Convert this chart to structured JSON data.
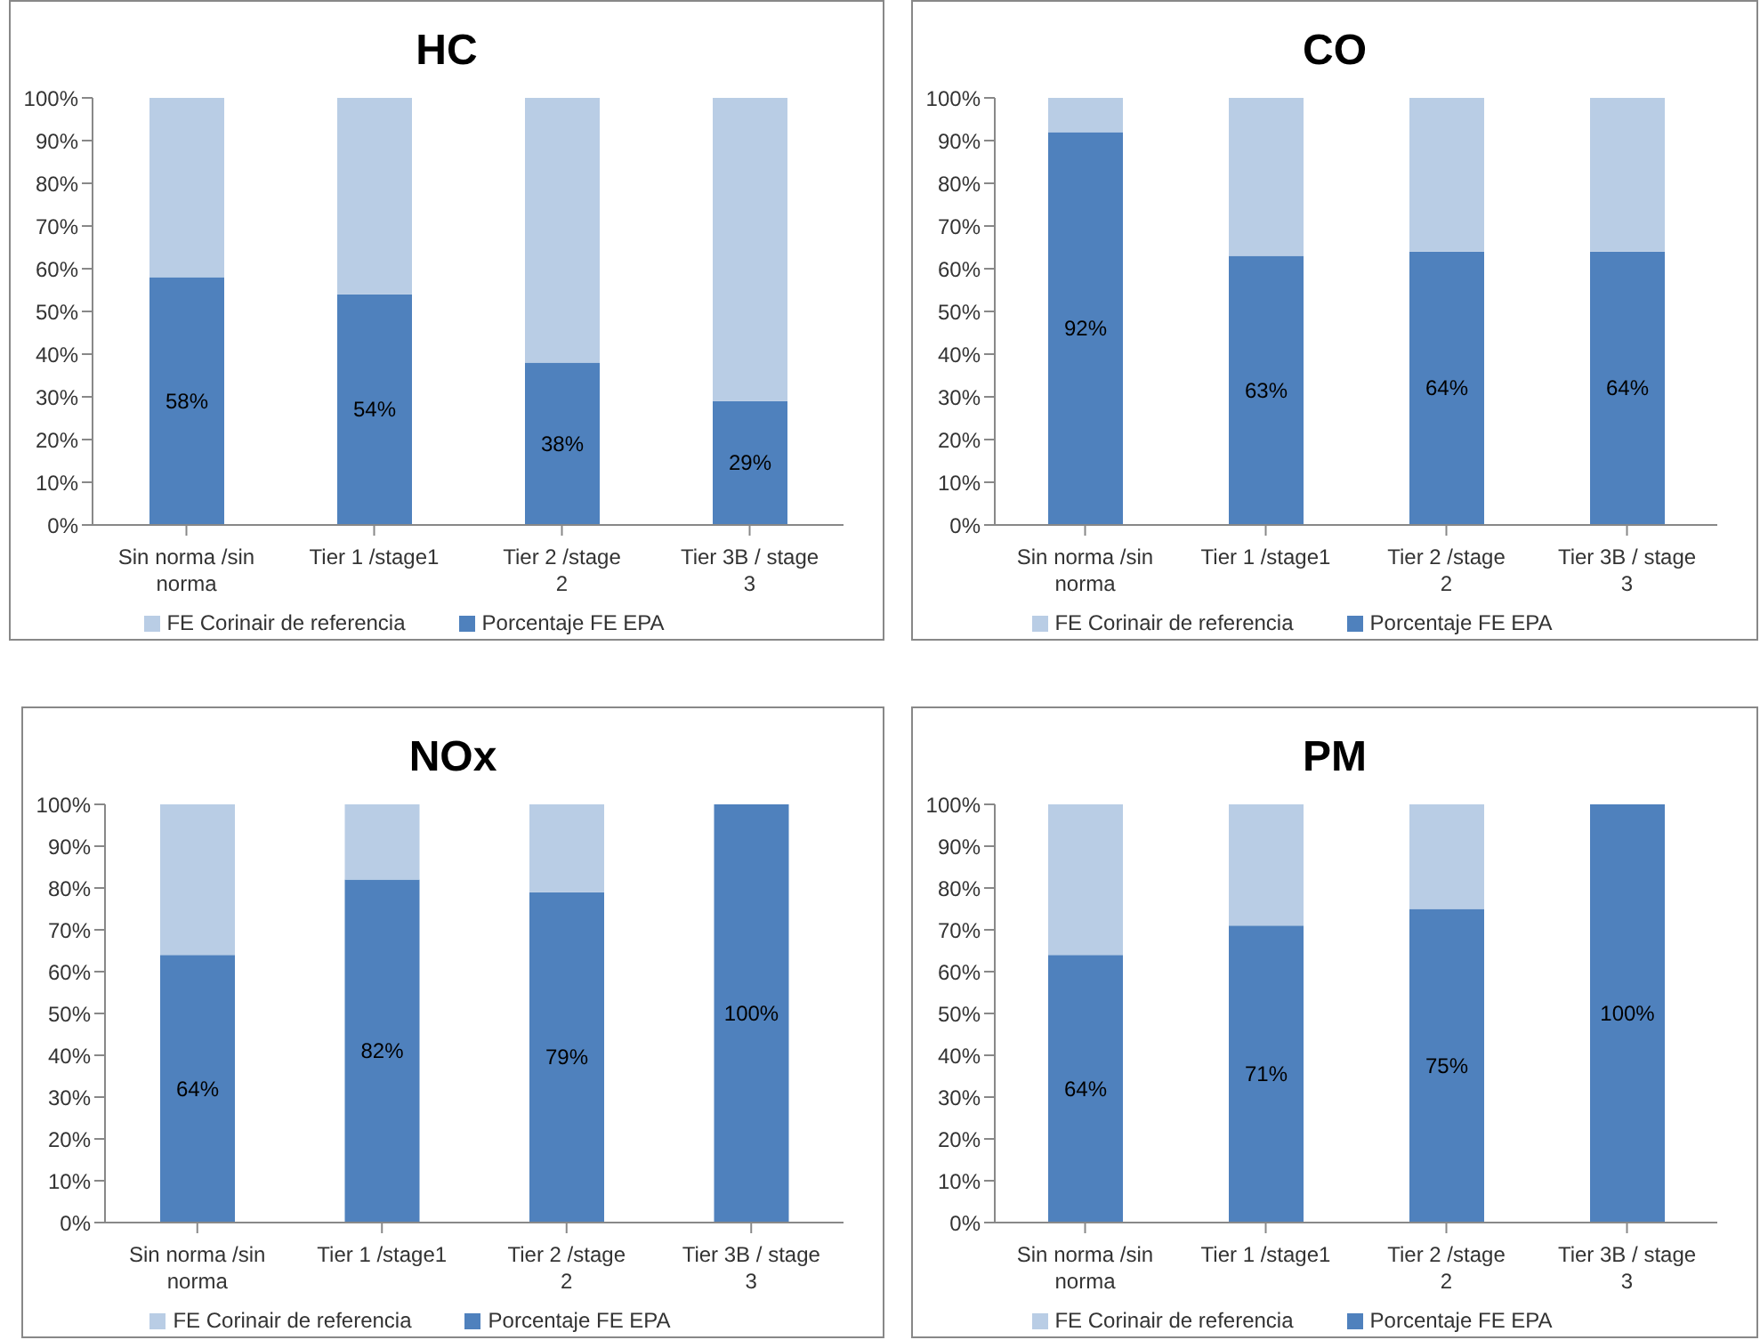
{
  "chart_data": [
    {
      "type": "bar",
      "stacked": true,
      "title": "HC",
      "categories": [
        "Sin norma /sin norma",
        "Tier 1  /stage1",
        "Tier 2  /stage 2",
        "Tier 3B / stage 3"
      ],
      "legend": "bottom",
      "ylim": [
        0,
        100
      ],
      "yticks": [
        {
          "value": 0,
          "label": "0%"
        },
        {
          "value": 10,
          "label": "10%"
        },
        {
          "value": 20,
          "label": "20%"
        },
        {
          "value": 30,
          "label": "30%"
        },
        {
          "value": 40,
          "label": "40%"
        },
        {
          "value": 50,
          "label": "50%"
        },
        {
          "value": 60,
          "label": "60%"
        },
        {
          "value": 70,
          "label": "70%"
        },
        {
          "value": 80,
          "label": "80%"
        },
        {
          "value": 90,
          "label": "90%"
        },
        {
          "value": 100,
          "label": "100%"
        }
      ],
      "series": [
        {
          "name": "Porcentaje FE EPA",
          "color": "#4f81bd",
          "values": [
            58,
            54,
            38,
            29
          ],
          "value_labels": [
            "58%",
            "54%",
            "38%",
            "29%"
          ]
        },
        {
          "name": "FE Corinair de referencia",
          "color": "#b9cde5",
          "values": [
            42,
            46,
            62,
            71
          ]
        }
      ]
    },
    {
      "type": "bar",
      "stacked": true,
      "title": "CO",
      "categories": [
        "Sin norma /sin norma",
        "Tier 1  /stage1",
        "Tier 2  /stage 2",
        "Tier 3B / stage 3"
      ],
      "legend": "bottom",
      "ylim": [
        0,
        100
      ],
      "yticks": [
        {
          "value": 0,
          "label": "0%"
        },
        {
          "value": 10,
          "label": "10%"
        },
        {
          "value": 20,
          "label": "20%"
        },
        {
          "value": 30,
          "label": "30%"
        },
        {
          "value": 40,
          "label": "40%"
        },
        {
          "value": 50,
          "label": "50%"
        },
        {
          "value": 60,
          "label": "60%"
        },
        {
          "value": 70,
          "label": "70%"
        },
        {
          "value": 80,
          "label": "80%"
        },
        {
          "value": 90,
          "label": "90%"
        },
        {
          "value": 100,
          "label": "100%"
        }
      ],
      "series": [
        {
          "name": "Porcentaje FE EPA",
          "color": "#4f81bd",
          "values": [
            92,
            63,
            64,
            64
          ],
          "value_labels": [
            "92%",
            "63%",
            "64%",
            "64%"
          ]
        },
        {
          "name": "FE Corinair de referencia",
          "color": "#b9cde5",
          "values": [
            8,
            37,
            36,
            36
          ]
        }
      ]
    },
    {
      "type": "bar",
      "stacked": true,
      "title": "NOx",
      "categories": [
        "Sin norma /sin norma",
        "Tier 1  /stage1",
        "Tier 2  /stage 2",
        "Tier 3B / stage 3"
      ],
      "legend": "bottom",
      "ylim": [
        0,
        100
      ],
      "yticks": [
        {
          "value": 0,
          "label": "0%"
        },
        {
          "value": 10,
          "label": "10%"
        },
        {
          "value": 20,
          "label": "20%"
        },
        {
          "value": 30,
          "label": "30%"
        },
        {
          "value": 40,
          "label": "40%"
        },
        {
          "value": 50,
          "label": "50%"
        },
        {
          "value": 60,
          "label": "60%"
        },
        {
          "value": 70,
          "label": "70%"
        },
        {
          "value": 80,
          "label": "80%"
        },
        {
          "value": 90,
          "label": "90%"
        },
        {
          "value": 100,
          "label": "100%"
        }
      ],
      "series": [
        {
          "name": "Porcentaje FE EPA",
          "color": "#4f81bd",
          "values": [
            64,
            82,
            79,
            100
          ],
          "value_labels": [
            "64%",
            "82%",
            "79%",
            "100%"
          ]
        },
        {
          "name": "FE Corinair de referencia",
          "color": "#b9cde5",
          "values": [
            36,
            18,
            21,
            0
          ]
        }
      ]
    },
    {
      "type": "bar",
      "stacked": true,
      "title": "PM",
      "categories": [
        "Sin norma /sin norma",
        "Tier 1  /stage1",
        "Tier 2  /stage 2",
        "Tier 3B / stage 3"
      ],
      "legend": "bottom",
      "ylim": [
        0,
        100
      ],
      "yticks": [
        {
          "value": 0,
          "label": "0%"
        },
        {
          "value": 10,
          "label": "10%"
        },
        {
          "value": 20,
          "label": "20%"
        },
        {
          "value": 30,
          "label": "30%"
        },
        {
          "value": 40,
          "label": "40%"
        },
        {
          "value": 50,
          "label": "50%"
        },
        {
          "value": 60,
          "label": "60%"
        },
        {
          "value": 70,
          "label": "70%"
        },
        {
          "value": 80,
          "label": "80%"
        },
        {
          "value": 90,
          "label": "90%"
        },
        {
          "value": 100,
          "label": "100%"
        }
      ],
      "series": [
        {
          "name": "Porcentaje FE EPA",
          "color": "#4f81bd",
          "values": [
            64,
            71,
            75,
            100
          ],
          "value_labels": [
            "64%",
            "71%",
            "75%",
            "100%"
          ]
        },
        {
          "name": "FE Corinair de referencia",
          "color": "#b9cde5",
          "values": [
            36,
            29,
            25,
            0
          ]
        }
      ]
    }
  ]
}
